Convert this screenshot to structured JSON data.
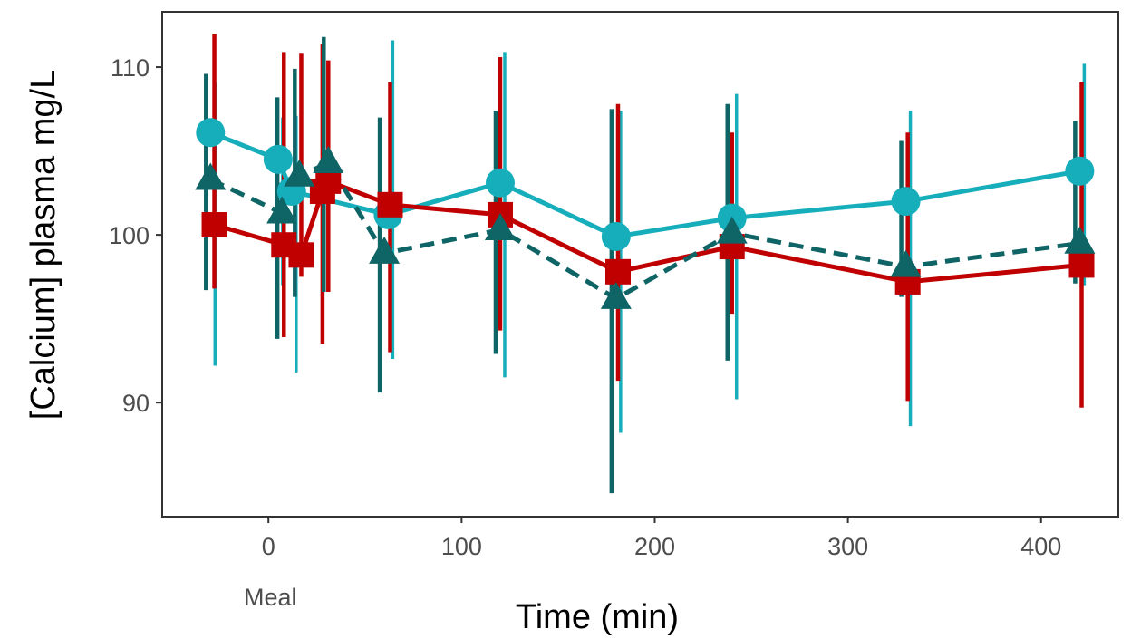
{
  "chart_data": {
    "type": "line",
    "title": "",
    "xlabel": "Time (min)",
    "ylabel": "[Calcium] plasma mg/L",
    "xlim": [
      -55,
      440
    ],
    "ylim": [
      83.2,
      113.3
    ],
    "xticks": [
      0,
      100,
      200,
      300,
      400
    ],
    "xtick_labels": [
      "0",
      "100",
      "200",
      "300",
      "400"
    ],
    "yticks": [
      90,
      100,
      110
    ],
    "ytick_labels": [
      "90",
      "100",
      "110"
    ],
    "annotations": [
      {
        "text": "Meal",
        "x": 0
      }
    ],
    "grid": false,
    "legend": "none",
    "series": [
      {
        "marker": "circle",
        "line_style": "solid",
        "color": "#17aebb",
        "x": [
          -30,
          5,
          12,
          62,
          120,
          180,
          240,
          330,
          420
        ],
        "y": [
          106.1,
          104.5,
          102.6,
          101.2,
          103.1,
          99.9,
          101.0,
          102.0,
          103.8
        ],
        "err_low": [
          92.2,
          97.0,
          91.8,
          92.6,
          91.5,
          88.2,
          90.2,
          88.6,
          97.0
        ],
        "err_high": [
          109.1,
          107.0,
          107.1,
          111.6,
          110.9,
          107.4,
          108.4,
          107.4,
          110.2
        ]
      },
      {
        "marker": "triangle",
        "line_style": "dashed",
        "color": "#0f6466",
        "x": [
          -30,
          7,
          16,
          31,
          60,
          120,
          180,
          240,
          330,
          420
        ],
        "y": [
          103.3,
          101.3,
          103.5,
          104.3,
          98.9,
          100.3,
          96.2,
          100.1,
          98.1,
          99.5
        ],
        "err_low": [
          96.7,
          93.8,
          96.3,
          96.6,
          90.6,
          92.9,
          84.6,
          92.5,
          96.3,
          97.1
        ],
        "err_high": [
          109.6,
          108.2,
          109.9,
          111.8,
          107.0,
          107.4,
          107.5,
          107.8,
          105.6,
          106.8
        ]
      },
      {
        "marker": "square",
        "line_style": "solid",
        "color": "#c00000",
        "x": [
          -28,
          8,
          17,
          28,
          31,
          63,
          120,
          181,
          240,
          331,
          421
        ],
        "y": [
          100.6,
          99.4,
          98.8,
          102.6,
          103.2,
          101.8,
          101.2,
          97.8,
          99.3,
          97.2,
          98.2
        ],
        "err_low": [
          96.8,
          93.9,
          97.5,
          93.5,
          96.6,
          93.0,
          94.3,
          91.3,
          95.3,
          90.1,
          89.7
        ],
        "err_high": [
          112.0,
          110.9,
          110.8,
          111.4,
          110.4,
          109.1,
          110.6,
          107.8,
          106.1,
          106.1,
          109.1
        ]
      }
    ]
  }
}
